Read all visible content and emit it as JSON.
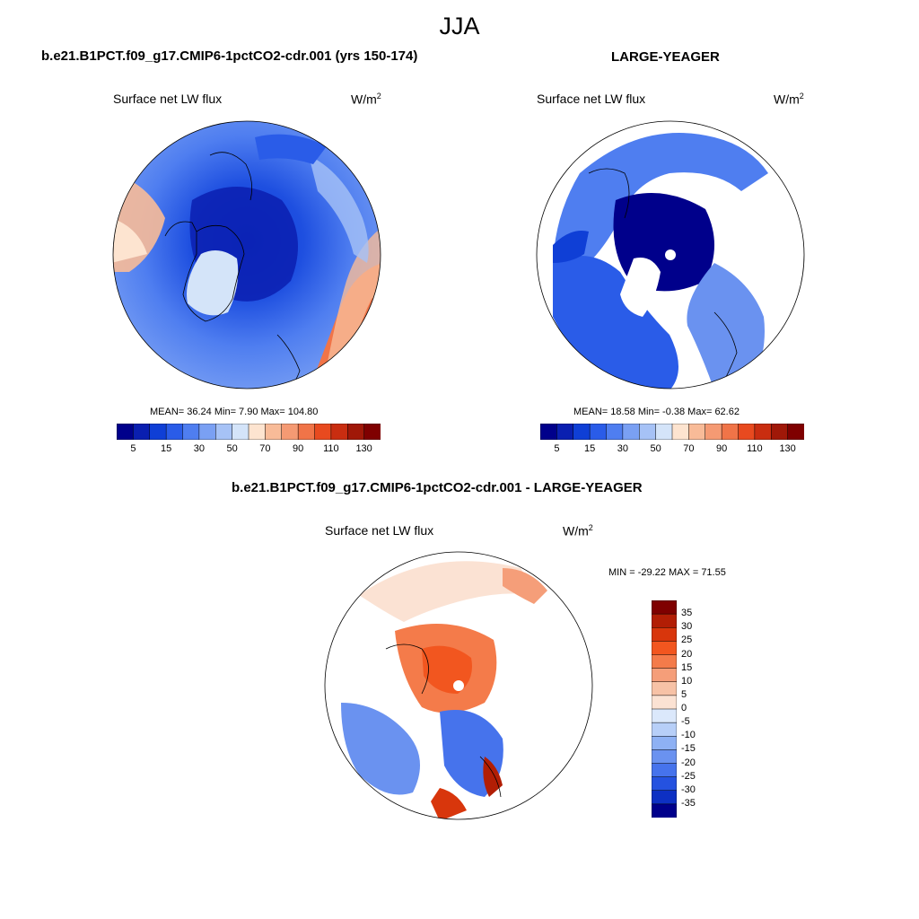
{
  "figure": {
    "season": "JJA"
  },
  "panels": {
    "model": {
      "title": "b.e21.B1PCT.f09_g17.CMIP6-1pctCO2-cdr.001 (yrs 150-174)",
      "variable": "Surface net LW flux",
      "units_base": "W/m",
      "units_exp": "2",
      "stats": "MEAN=  36.24  Min=   7.90  Max= 104.80",
      "colorbar_ticks": [
        "5",
        "15",
        "30",
        "50",
        "70",
        "90",
        "110",
        "130"
      ]
    },
    "obs": {
      "title": "LARGE-YEAGER",
      "variable": "Surface net LW flux",
      "units_base": "W/m",
      "units_exp": "2",
      "stats": "MEAN=  18.58  Min=  -0.38  Max=  62.62",
      "colorbar_ticks": [
        "5",
        "15",
        "30",
        "50",
        "70",
        "90",
        "110",
        "130"
      ]
    },
    "diff": {
      "title": "b.e21.B1PCT.f09_g17.CMIP6-1pctCO2-cdr.001 - LARGE-YEAGER",
      "variable": "Surface net LW flux",
      "units_base": "W/m",
      "units_exp": "2",
      "stats": "MIN = -29.22 MAX =  71.55",
      "colorbar_ticks": [
        "35",
        "30",
        "25",
        "20",
        "15",
        "10",
        "5",
        "0",
        "-5",
        "-10",
        "-15",
        "-20",
        "-25",
        "-30",
        "-35"
      ]
    }
  },
  "colors": {
    "abs_scale": [
      "#00008b",
      "#0a1fb0",
      "#0f3fd6",
      "#2a5ce8",
      "#4f7ef0",
      "#7aa0f3",
      "#a6c2f6",
      "#d4e4f9",
      "#fde4d0",
      "#f8bb98",
      "#f59a73",
      "#f07448",
      "#e84a1f",
      "#c92d10",
      "#a01808",
      "#7f0000"
    ],
    "diff_scale": [
      "#7f0000",
      "#b21e05",
      "#d8360c",
      "#f2561f",
      "#f47b4a",
      "#f59e79",
      "#f7c2a6",
      "#fbe2d3",
      "#dbe8fb",
      "#b7cff8",
      "#8eb1f4",
      "#6a92f0",
      "#4673ec",
      "#2552e0",
      "#0d30c3",
      "#00008b"
    ],
    "ocean_base_model": "#3f74ec",
    "ocean_base_obs": "#1e4fe0",
    "ocean_base_diff": "#f7c2a6"
  }
}
